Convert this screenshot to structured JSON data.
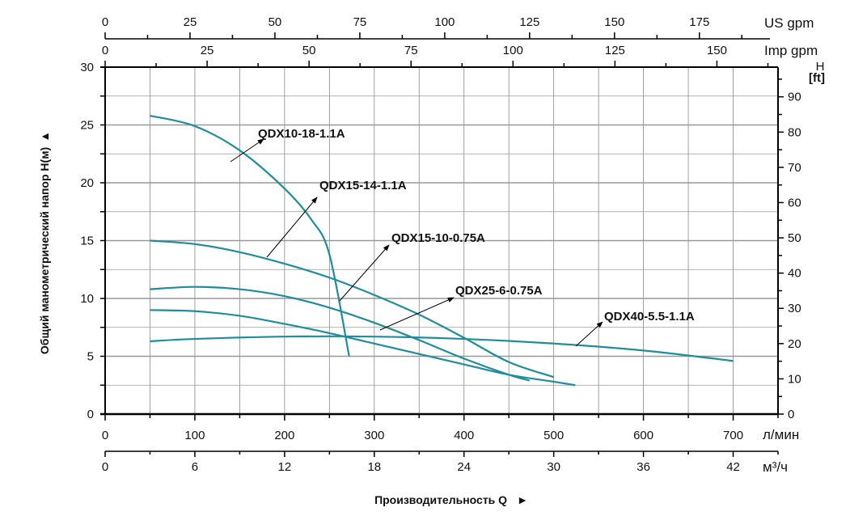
{
  "chart_data": {
    "type": "line",
    "title": "",
    "xlabel": "Производительность Q",
    "ylabel": "Общий манометрический напор H(м)",
    "xlim": [
      0,
      750
    ],
    "ylim": [
      0,
      30
    ],
    "grid": true,
    "line_color": "#1f8d9c",
    "axes": {
      "bottom_primary": {
        "unit": "л/мин",
        "ticks": [
          0,
          100,
          200,
          300,
          400,
          500,
          600,
          700
        ]
      },
      "bottom_secondary": {
        "unit": "м³/ч",
        "ticks": [
          0,
          6,
          12,
          18,
          24,
          30,
          36,
          42
        ]
      },
      "top_us": {
        "unit": "US gpm",
        "ticks": [
          0,
          25,
          50,
          75,
          100,
          125,
          150,
          175
        ]
      },
      "top_imp": {
        "unit": "Imp gpm",
        "ticks": [
          0,
          25,
          50,
          75,
          100,
          125,
          150
        ]
      },
      "left": {
        "unit": "H(м)",
        "ticks": [
          0,
          5,
          10,
          15,
          20,
          25,
          30
        ]
      },
      "right": {
        "unit_top": "H",
        "unit_bottom": "[ft]",
        "ticks": [
          0,
          10,
          20,
          30,
          40,
          50,
          60,
          70,
          80,
          90
        ]
      }
    },
    "series": [
      {
        "name": "QDX10-18-1.1A",
        "x": [
          50,
          100,
          150,
          200,
          230,
          250,
          272
        ],
        "y": [
          25.8,
          24.9,
          22.8,
          19.5,
          16.8,
          13.8,
          5.0
        ]
      },
      {
        "name": "QDX15-14-1.1A",
        "x": [
          50,
          100,
          150,
          200,
          250,
          300,
          350,
          400,
          450,
          500
        ],
        "y": [
          15.0,
          14.7,
          14.0,
          13.0,
          11.8,
          10.3,
          8.6,
          6.6,
          4.5,
          3.2
        ]
      },
      {
        "name": "QDX15-10-0.75A",
        "x": [
          50,
          100,
          150,
          200,
          250,
          300,
          350,
          400,
          450,
          473
        ],
        "y": [
          10.8,
          11.0,
          10.8,
          10.2,
          9.2,
          7.9,
          6.4,
          4.8,
          3.4,
          2.9
        ]
      },
      {
        "name": "QDX25-6-0.75A",
        "x": [
          50,
          100,
          150,
          200,
          250,
          300,
          350,
          400,
          450,
          500,
          524
        ],
        "y": [
          9.0,
          8.9,
          8.5,
          7.8,
          7.0,
          6.1,
          5.2,
          4.3,
          3.4,
          2.8,
          2.5
        ]
      },
      {
        "name": "QDX40-5.5-1.1A",
        "x": [
          50,
          100,
          200,
          300,
          400,
          500,
          600,
          700
        ],
        "y": [
          6.3,
          6.5,
          6.7,
          6.7,
          6.5,
          6.1,
          5.5,
          4.6
        ]
      }
    ]
  }
}
